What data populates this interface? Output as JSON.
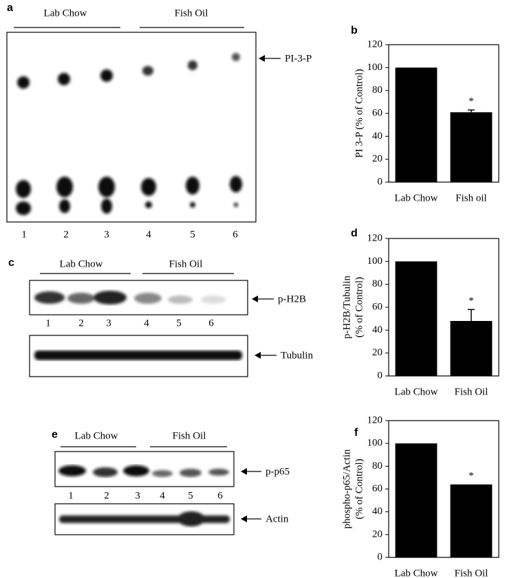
{
  "blots": {
    "a": {
      "panel": "a",
      "groups": [
        "Lab Chow",
        "Fish Oil"
      ],
      "lanes": [
        1,
        2,
        3,
        4,
        5,
        6
      ],
      "band": "PI-3-P"
    },
    "c": {
      "panel": "c",
      "groups": [
        "Lab Chow",
        "Fish Oil"
      ],
      "lanes": [
        1,
        2,
        3,
        4,
        5,
        6
      ],
      "bands": [
        "p-H2B",
        "Tubulin"
      ]
    },
    "e": {
      "panel": "e",
      "groups": [
        "Lab Chow",
        "Fish Oil"
      ],
      "lanes": [
        1,
        2,
        3,
        4,
        5,
        6
      ],
      "bands": [
        "p-p65",
        "Actin"
      ]
    }
  },
  "chart_data": [
    {
      "type": "bar",
      "panel": "b",
      "ylabel": [
        "PI 3-P (% of Control)"
      ],
      "categories": [
        "Lab Chow",
        "Fish oil"
      ],
      "values": [
        100,
        61
      ],
      "errors": [
        null,
        2
      ],
      "color": "#000000",
      "annotation": "*",
      "ylim": [
        0,
        120
      ],
      "yticks": [
        0,
        20,
        40,
        60,
        80,
        100,
        120
      ]
    },
    {
      "type": "bar",
      "panel": "d",
      "ylabel": [
        "p-H2B/Tubulin",
        "(% of Control)"
      ],
      "categories": [
        "Lab Chow",
        "Fish Oil"
      ],
      "values": [
        100,
        48
      ],
      "errors": [
        null,
        10
      ],
      "color": "#000000",
      "annotation": "*",
      "ylim": [
        0,
        120
      ],
      "yticks": [
        0,
        20,
        40,
        60,
        80,
        100,
        120
      ]
    },
    {
      "type": "bar",
      "panel": "f",
      "ylabel": [
        "phospho-p65/Actin",
        "(% of Control)"
      ],
      "categories": [
        "Lab Chow",
        "Fish Oil"
      ],
      "values": [
        100,
        64
      ],
      "color": "#000000",
      "annotation": "*",
      "ylim": [
        0,
        120
      ],
      "yticks": [
        0,
        20,
        40,
        60,
        80,
        100,
        120
      ]
    }
  ]
}
